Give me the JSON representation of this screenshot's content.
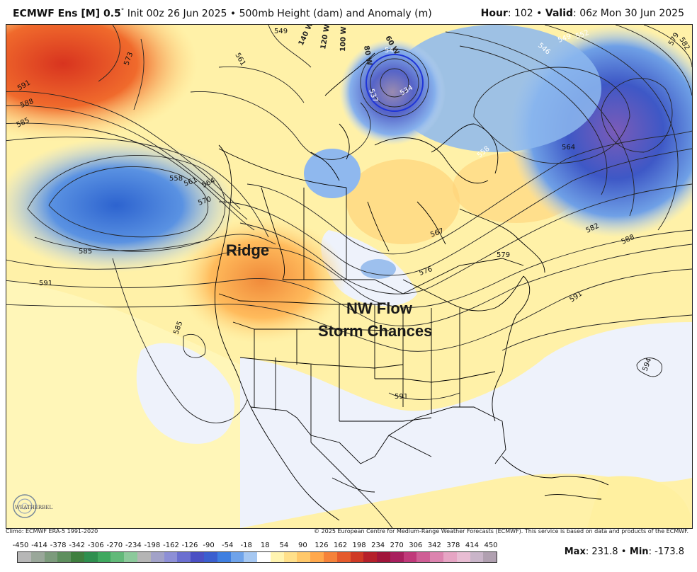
{
  "header": {
    "model": "ECMWF Ens [M] 0.5",
    "degree": "°",
    "init": "Init 00z 26 Jun 2025",
    "sep": "•",
    "product": "500mb Height (dam) and Anomaly (m)",
    "hour_label": "Hour",
    "hour_value": ": 102",
    "valid_label": "Valid",
    "valid_value": ": 06z Mon 30 Jun 2025"
  },
  "annotations": {
    "ridge": "Ridge",
    "nw_flow": "NW Flow",
    "storm": "Storm Chances"
  },
  "contour_labels": {
    "c549a": "549",
    "c540": "540",
    "c534": "534",
    "c537": "537",
    "c546": "546",
    "c549b": "549",
    "c552": "552",
    "c582a": "582",
    "c579a": "579",
    "c573": "573",
    "c561a": "561",
    "c591a": "591",
    "c588a": "588",
    "c585a": "585",
    "c558a": "558",
    "c561b": "561",
    "c564a": "564",
    "c570": "570",
    "c585b": "585",
    "c591b": "591",
    "c585c": "585",
    "c558b": "558",
    "c564b": "564",
    "c582b": "582",
    "c588b": "588",
    "c567": "567",
    "c579b": "579",
    "c576": "576",
    "c591c": "591",
    "c594": "594",
    "c591d": "591"
  },
  "longitude_labels": [
    "140 W",
    "120 W",
    "100 W",
    "80 W",
    "60 W"
  ],
  "footer": {
    "climo": "Climo: ECMWF ERA-5 1991-2020",
    "copyright": "© 2025 European Centre for Medium-Range Weather Forecasts (ECMWF). This service is based on data and products of the ECMWF."
  },
  "colorbar": {
    "ticks": [
      "-450",
      "-414",
      "-378",
      "-342",
      "-306",
      "-270",
      "-234",
      "-198",
      "-162",
      "-126",
      "-90",
      "-54",
      "-18",
      "18",
      "54",
      "90",
      "126",
      "162",
      "198",
      "234",
      "270",
      "306",
      "342",
      "378",
      "414",
      "450"
    ],
    "colors": [
      "#b7b7b7",
      "#9aa79a",
      "#7c9b7c",
      "#5e8f5e",
      "#3f7f3f",
      "#2f8f4f",
      "#3fa85f",
      "#62b979",
      "#8cc99b",
      "#b5b5b5",
      "#a2a2c8",
      "#8d8fd6",
      "#6b6fd0",
      "#4b50c4",
      "#3b5fcf",
      "#3f7fe0",
      "#6fa3ea",
      "#a6c8f2",
      "#ffffff",
      "#fff4b0",
      "#ffe08a",
      "#ffc86a",
      "#ffa84c",
      "#f5823a",
      "#e55a2c",
      "#cf3a25",
      "#b5202a",
      "#a0153a",
      "#a81f5e",
      "#c0397a",
      "#cf5e95",
      "#dc84af",
      "#e6a5c4",
      "#e8bdd3",
      "#c9b5c9",
      "#b0a0b0"
    ],
    "max_label": "Max",
    "max_value": ": 231.8 ",
    "sep": "•",
    "min_label": " Min",
    "min_value": ": -173.8"
  },
  "logo": {
    "text": "WEATHERBELL"
  }
}
